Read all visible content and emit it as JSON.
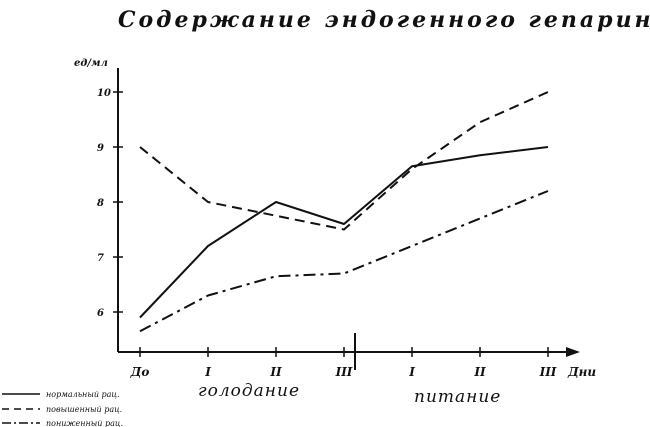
{
  "chart_data": {
    "type": "line",
    "title": "Содержание эндогенного гепарина в ед/мл",
    "ylabel": "ед/мл",
    "xlabel": "Дни",
    "ylim": [
      5,
      10.5
    ],
    "yticks": [
      "5",
      "6",
      "7",
      "8",
      "9",
      "10"
    ],
    "x_tick_labels": [
      "До",
      "I",
      "II",
      "III",
      "I",
      "II",
      "III"
    ],
    "x_groups": [
      {
        "label": "голодание",
        "from": 1,
        "to": 3
      },
      {
        "label": "питание",
        "from": 4,
        "to": 6
      }
    ],
    "grid": false,
    "legend_position": "bottom-left",
    "series": [
      {
        "name": "нормальный рац.",
        "style": "solid",
        "x": [
          0,
          1,
          2,
          3,
          4,
          5,
          6
        ],
        "values": [
          5.9,
          7.2,
          8.0,
          7.6,
          8.65,
          8.85,
          9.0
        ]
      },
      {
        "name": "повышенный рац.",
        "style": "dashed",
        "x": [
          0,
          1,
          2,
          3,
          4,
          5,
          6
        ],
        "values": [
          9.0,
          8.0,
          7.75,
          7.5,
          8.6,
          9.45,
          10.0
        ]
      },
      {
        "name": "пониженный рац.",
        "style": "dashdot",
        "x": [
          0,
          1,
          2,
          3,
          4,
          5,
          6
        ],
        "values": [
          5.65,
          6.3,
          6.65,
          6.7,
          7.2,
          7.7,
          8.2
        ]
      }
    ]
  }
}
